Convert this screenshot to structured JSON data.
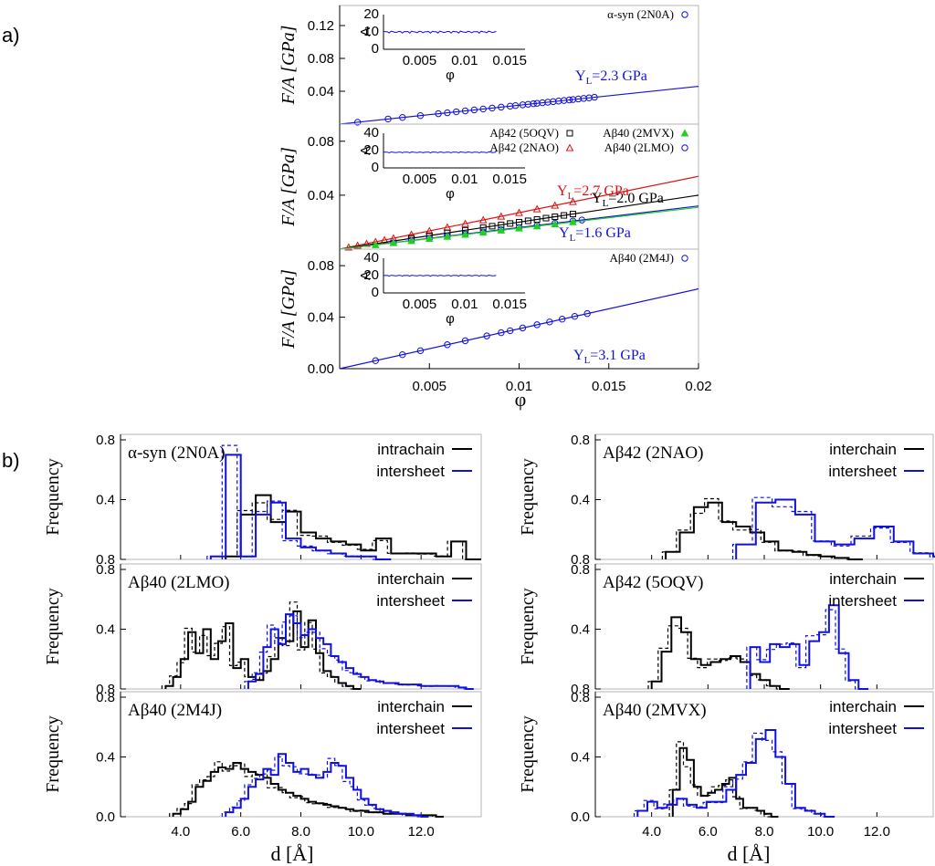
{
  "panel_labels": {
    "a": "a)",
    "b": "b)"
  },
  "colors": {
    "blue": "#1010e0",
    "red": "#e01010",
    "green": "#20d020",
    "black": "#000000"
  },
  "chart_data": [
    {
      "type": "scatter",
      "panel": "a",
      "xlabel": "φ",
      "xticks": [
        "0.005",
        "0.01",
        "0.015",
        "0.02"
      ],
      "xlim": [
        0,
        0.02
      ],
      "subplots": [
        {
          "name": "alpha-syn",
          "ylabel": "F/A [GPa]",
          "ylim": [
            0,
            0.14
          ],
          "yticks": [
            "0.04",
            "0.08",
            "0.12"
          ],
          "legend": [
            {
              "label": "α-syn (2N0A)",
              "marker": "circle",
              "color": "#1010e0"
            }
          ],
          "fit_labels": [
            {
              "text": "Y",
              "sub": "L",
              "rest": "=2.3 GPa",
              "color": "#1010e0"
            }
          ],
          "series": [
            {
              "name": "α-syn (2N0A)",
              "marker": "circle",
              "color": "#1010e0",
              "slope": 2.3,
              "x": [
                0.001,
                0.0027,
                0.0035,
                0.0045,
                0.0055,
                0.006,
                0.0065,
                0.007,
                0.0075,
                0.008,
                0.0085,
                0.009,
                0.0095,
                0.0098,
                0.0102,
                0.0105,
                0.0108,
                0.011,
                0.0113,
                0.0116,
                0.0119,
                0.0122,
                0.0125,
                0.0128,
                0.013,
                0.0133,
                0.0136,
                0.0139,
                0.0142
              ]
            }
          ],
          "inset": {
            "ylabel": "A",
            "yticks": [
              "0",
              "10",
              "20"
            ],
            "xticks": [
              "0.005",
              "0.01",
              "0.015"
            ],
            "xlabel": "φ",
            "level": 10
          }
        },
        {
          "name": "abeta-group",
          "ylabel": "F/A [GPa]",
          "ylim": [
            0,
            0.09
          ],
          "yticks": [
            "0.04",
            "0.08"
          ],
          "legend": [
            {
              "label": "Aβ42 (5OQV)",
              "marker": "square",
              "color": "#000000"
            },
            {
              "label": "Aβ40 (2MVX)",
              "marker": "triangle-filled",
              "color": "#20d020"
            },
            {
              "label": "Aβ42 (2NAO)",
              "marker": "triangle",
              "color": "#e01010"
            },
            {
              "label": "Aβ40 (2LMO)",
              "marker": "circle",
              "color": "#1010e0"
            }
          ],
          "fit_labels": [
            {
              "text": "Y",
              "sub": "L",
              "rest": "=2.7 GPa",
              "color": "#e01010"
            },
            {
              "text": "Y",
              "sub": "L",
              "rest": "=2.0 GPa",
              "color": "#000000"
            },
            {
              "text": "Y",
              "sub": "L",
              "rest": "=1.6 GPa",
              "color": "#1010e0"
            }
          ],
          "series": [
            {
              "name": "Aβ42 (2NAO)",
              "marker": "triangle",
              "color": "#e01010",
              "slope": 2.7,
              "x": [
                0.0005,
                0.001,
                0.0015,
                0.002,
                0.0025,
                0.003,
                0.004,
                0.005,
                0.006,
                0.007,
                0.008,
                0.009,
                0.01,
                0.011,
                0.012,
                0.013
              ]
            },
            {
              "name": "Aβ42 (5OQV)",
              "marker": "square",
              "color": "#000000",
              "slope": 2.0,
              "x": [
                0.004,
                0.005,
                0.006,
                0.007,
                0.008,
                0.0085,
                0.009,
                0.0095,
                0.01,
                0.0105,
                0.011,
                0.0115,
                0.012,
                0.0125,
                0.013
              ]
            },
            {
              "name": "Aβ40 (2LMO)",
              "marker": "circle",
              "color": "#1010e0",
              "slope": 1.6,
              "x": [
                0.003,
                0.004,
                0.005,
                0.006,
                0.007,
                0.008,
                0.009,
                0.01,
                0.011,
                0.012,
                0.013,
                0.0135
              ]
            },
            {
              "name": "Aβ40 (2MVX)",
              "marker": "triangle-filled",
              "color": "#20d020",
              "slope": 1.55,
              "x": [
                0.002,
                0.003,
                0.004,
                0.005,
                0.006,
                0.007,
                0.008,
                0.009,
                0.01,
                0.011,
                0.012,
                0.013
              ]
            }
          ],
          "inset": {
            "ylabel": "A",
            "yticks": [
              "0",
              "20",
              "40"
            ],
            "xticks": [
              "0.005",
              "0.01",
              "0.015"
            ],
            "xlabel": "φ",
            "level": 18
          }
        },
        {
          "name": "abeta40-2m4j",
          "ylabel": "F/A [GPa]",
          "ylim": [
            0,
            0.09
          ],
          "yticks": [
            "0.00",
            "0.04",
            "0.08"
          ],
          "legend": [
            {
              "label": "Aβ40 (2M4J)",
              "marker": "circle",
              "color": "#1010e0"
            }
          ],
          "fit_labels": [
            {
              "text": "Y",
              "sub": "L",
              "rest": "=3.1 GPa",
              "color": "#1010e0"
            }
          ],
          "series": [
            {
              "name": "Aβ40 (2M4J)",
              "marker": "circle",
              "color": "#1010e0",
              "slope": 3.1,
              "x": [
                0.002,
                0.0035,
                0.0045,
                0.006,
                0.007,
                0.0082,
                0.009,
                0.0095,
                0.0102,
                0.011,
                0.0117,
                0.0124,
                0.0131,
                0.0138
              ]
            }
          ],
          "inset": {
            "ylabel": "A",
            "yticks": [
              "0",
              "20",
              "40"
            ],
            "xticks": [
              "0.005",
              "0.01",
              "0.015"
            ],
            "xlabel": "φ",
            "level": 20
          }
        }
      ]
    },
    {
      "type": "histogram",
      "panel": "b",
      "xlabel": "d [Å]",
      "ylabel": "Frequency",
      "xlim": [
        2.0,
        14.0
      ],
      "xticks": [
        "4.0",
        "6.0",
        "8.0",
        "10.0",
        "12.0"
      ],
      "plots": [
        {
          "title": "α-syn (2N0A)",
          "legend": [
            "intrachain",
            "intersheet"
          ],
          "yticks": [
            "0.8",
            "0.4",
            "0.8"
          ],
          "col": 0,
          "row": 0,
          "black": {
            "start": 5.5,
            "width": 0.5,
            "values": [
              0.02,
              0.3,
              0.43,
              0.25,
              0.32,
              0.18,
              0.14,
              0.12,
              0.1,
              0.06,
              0.14,
              0.04,
              0.04,
              0.04,
              0.02,
              0.12,
              0.0
            ]
          },
          "blue": {
            "start": 5.0,
            "width": 0.5,
            "values": [
              0.02,
              0.7,
              0.02,
              0.3,
              0.38,
              0.14,
              0.08,
              0.06,
              0.04,
              0.02,
              0.02,
              0.0
            ]
          }
        },
        {
          "title": "Aβ42 (2NAO)",
          "legend": [
            "interchain",
            "intersheet"
          ],
          "yticks": [
            "0.8",
            "0.4",
            "0.8"
          ],
          "col": 1,
          "row": 0,
          "black": {
            "start": 4.5,
            "width": 0.5,
            "values": [
              0.05,
              0.18,
              0.35,
              0.38,
              0.25,
              0.22,
              0.18,
              0.12,
              0.06,
              0.05,
              0.03,
              0.02,
              0.01,
              0.0
            ]
          },
          "blue": {
            "start": 7.0,
            "width": 0.7,
            "values": [
              0.1,
              0.38,
              0.4,
              0.3,
              0.12,
              0.1,
              0.14,
              0.22,
              0.12,
              0.04,
              0.02,
              0.0
            ]
          }
        },
        {
          "title": "Aβ40 (2LMO)",
          "legend": [
            "interchain",
            "intersheet"
          ],
          "yticks": [
            "0.8",
            "0.4",
            "0.8"
          ],
          "col": 0,
          "row": 1,
          "black": {
            "start": 3.5,
            "width": 0.25,
            "values": [
              0.02,
              0.08,
              0.2,
              0.38,
              0.24,
              0.4,
              0.2,
              0.32,
              0.44,
              0.14,
              0.2,
              0.08,
              0.06,
              0.12,
              0.2,
              0.34,
              0.32,
              0.52,
              0.28,
              0.46,
              0.24,
              0.12,
              0.08,
              0.04,
              0.02,
              0.0
            ]
          },
          "blue": {
            "start": 6.25,
            "width": 0.25,
            "values": [
              0.05,
              0.1,
              0.28,
              0.4,
              0.3,
              0.5,
              0.44,
              0.36,
              0.4,
              0.34,
              0.3,
              0.22,
              0.18,
              0.14,
              0.1,
              0.08,
              0.06,
              0.05,
              0.04,
              0.04,
              0.03,
              0.03,
              0.03,
              0.02,
              0.02,
              0.02,
              0.02,
              0.02,
              0.01,
              0.0
            ]
          }
        },
        {
          "title": "Aβ42 (5OQV)",
          "legend": [
            "interchain",
            "intersheet"
          ],
          "yticks": [
            "0.8",
            "0.4",
            "0.8"
          ],
          "col": 1,
          "row": 1,
          "black": {
            "start": 4.0,
            "width": 0.35,
            "values": [
              0.05,
              0.25,
              0.48,
              0.38,
              0.2,
              0.16,
              0.18,
              0.2,
              0.22,
              0.18,
              0.1,
              0.06,
              0.02,
              0.0
            ]
          },
          "blue": {
            "start": 7.5,
            "width": 0.35,
            "values": [
              0.28,
              0.18,
              0.3,
              0.28,
              0.3,
              0.16,
              0.32,
              0.38,
              0.56,
              0.24,
              0.06,
              0.0
            ]
          }
        },
        {
          "title": "Aβ40 (2M4J)",
          "legend": [
            "interchain",
            "intersheet"
          ],
          "yticks": [
            "0.0",
            "0.4",
            "0.8"
          ],
          "col": 0,
          "row": 2,
          "black": {
            "start": 3.75,
            "width": 0.25,
            "values": [
              0.02,
              0.05,
              0.1,
              0.2,
              0.24,
              0.3,
              0.33,
              0.32,
              0.36,
              0.32,
              0.3,
              0.28,
              0.26,
              0.22,
              0.18,
              0.16,
              0.14,
              0.12,
              0.1,
              0.09,
              0.08,
              0.07,
              0.06,
              0.05,
              0.04,
              0.04,
              0.03,
              0.03,
              0.02,
              0.02,
              0.02,
              0.01,
              0.01,
              0.01,
              0.01,
              0.0
            ]
          },
          "blue": {
            "start": 5.5,
            "width": 0.25,
            "values": [
              0.03,
              0.06,
              0.12,
              0.2,
              0.25,
              0.32,
              0.28,
              0.42,
              0.36,
              0.3,
              0.32,
              0.28,
              0.26,
              0.3,
              0.36,
              0.34,
              0.26,
              0.18,
              0.12,
              0.08,
              0.05,
              0.04,
              0.03,
              0.02,
              0.02,
              0.01,
              0.0
            ]
          }
        },
        {
          "title": "Aβ40 (2MVX)",
          "legend": [
            "interchain",
            "intersheet"
          ],
          "yticks": [
            "0.0",
            "0.4",
            "0.8"
          ],
          "col": 1,
          "row": 2,
          "black": {
            "start": 4.75,
            "width": 0.25,
            "values": [
              0.18,
              0.46,
              0.38,
              0.2,
              0.14,
              0.16,
              0.18,
              0.22,
              0.26,
              0.12,
              0.06,
              0.06,
              0.04,
              0.02,
              0.0
            ]
          },
          "blue": {
            "start": 3.5,
            "width": 0.35,
            "values": [
              0.04,
              0.1,
              0.06,
              0.08,
              0.12,
              0.08,
              0.06,
              0.1,
              0.1,
              0.18,
              0.28,
              0.36,
              0.52,
              0.58,
              0.4,
              0.22,
              0.06,
              0.04,
              0.02,
              0.0
            ]
          }
        }
      ]
    }
  ]
}
